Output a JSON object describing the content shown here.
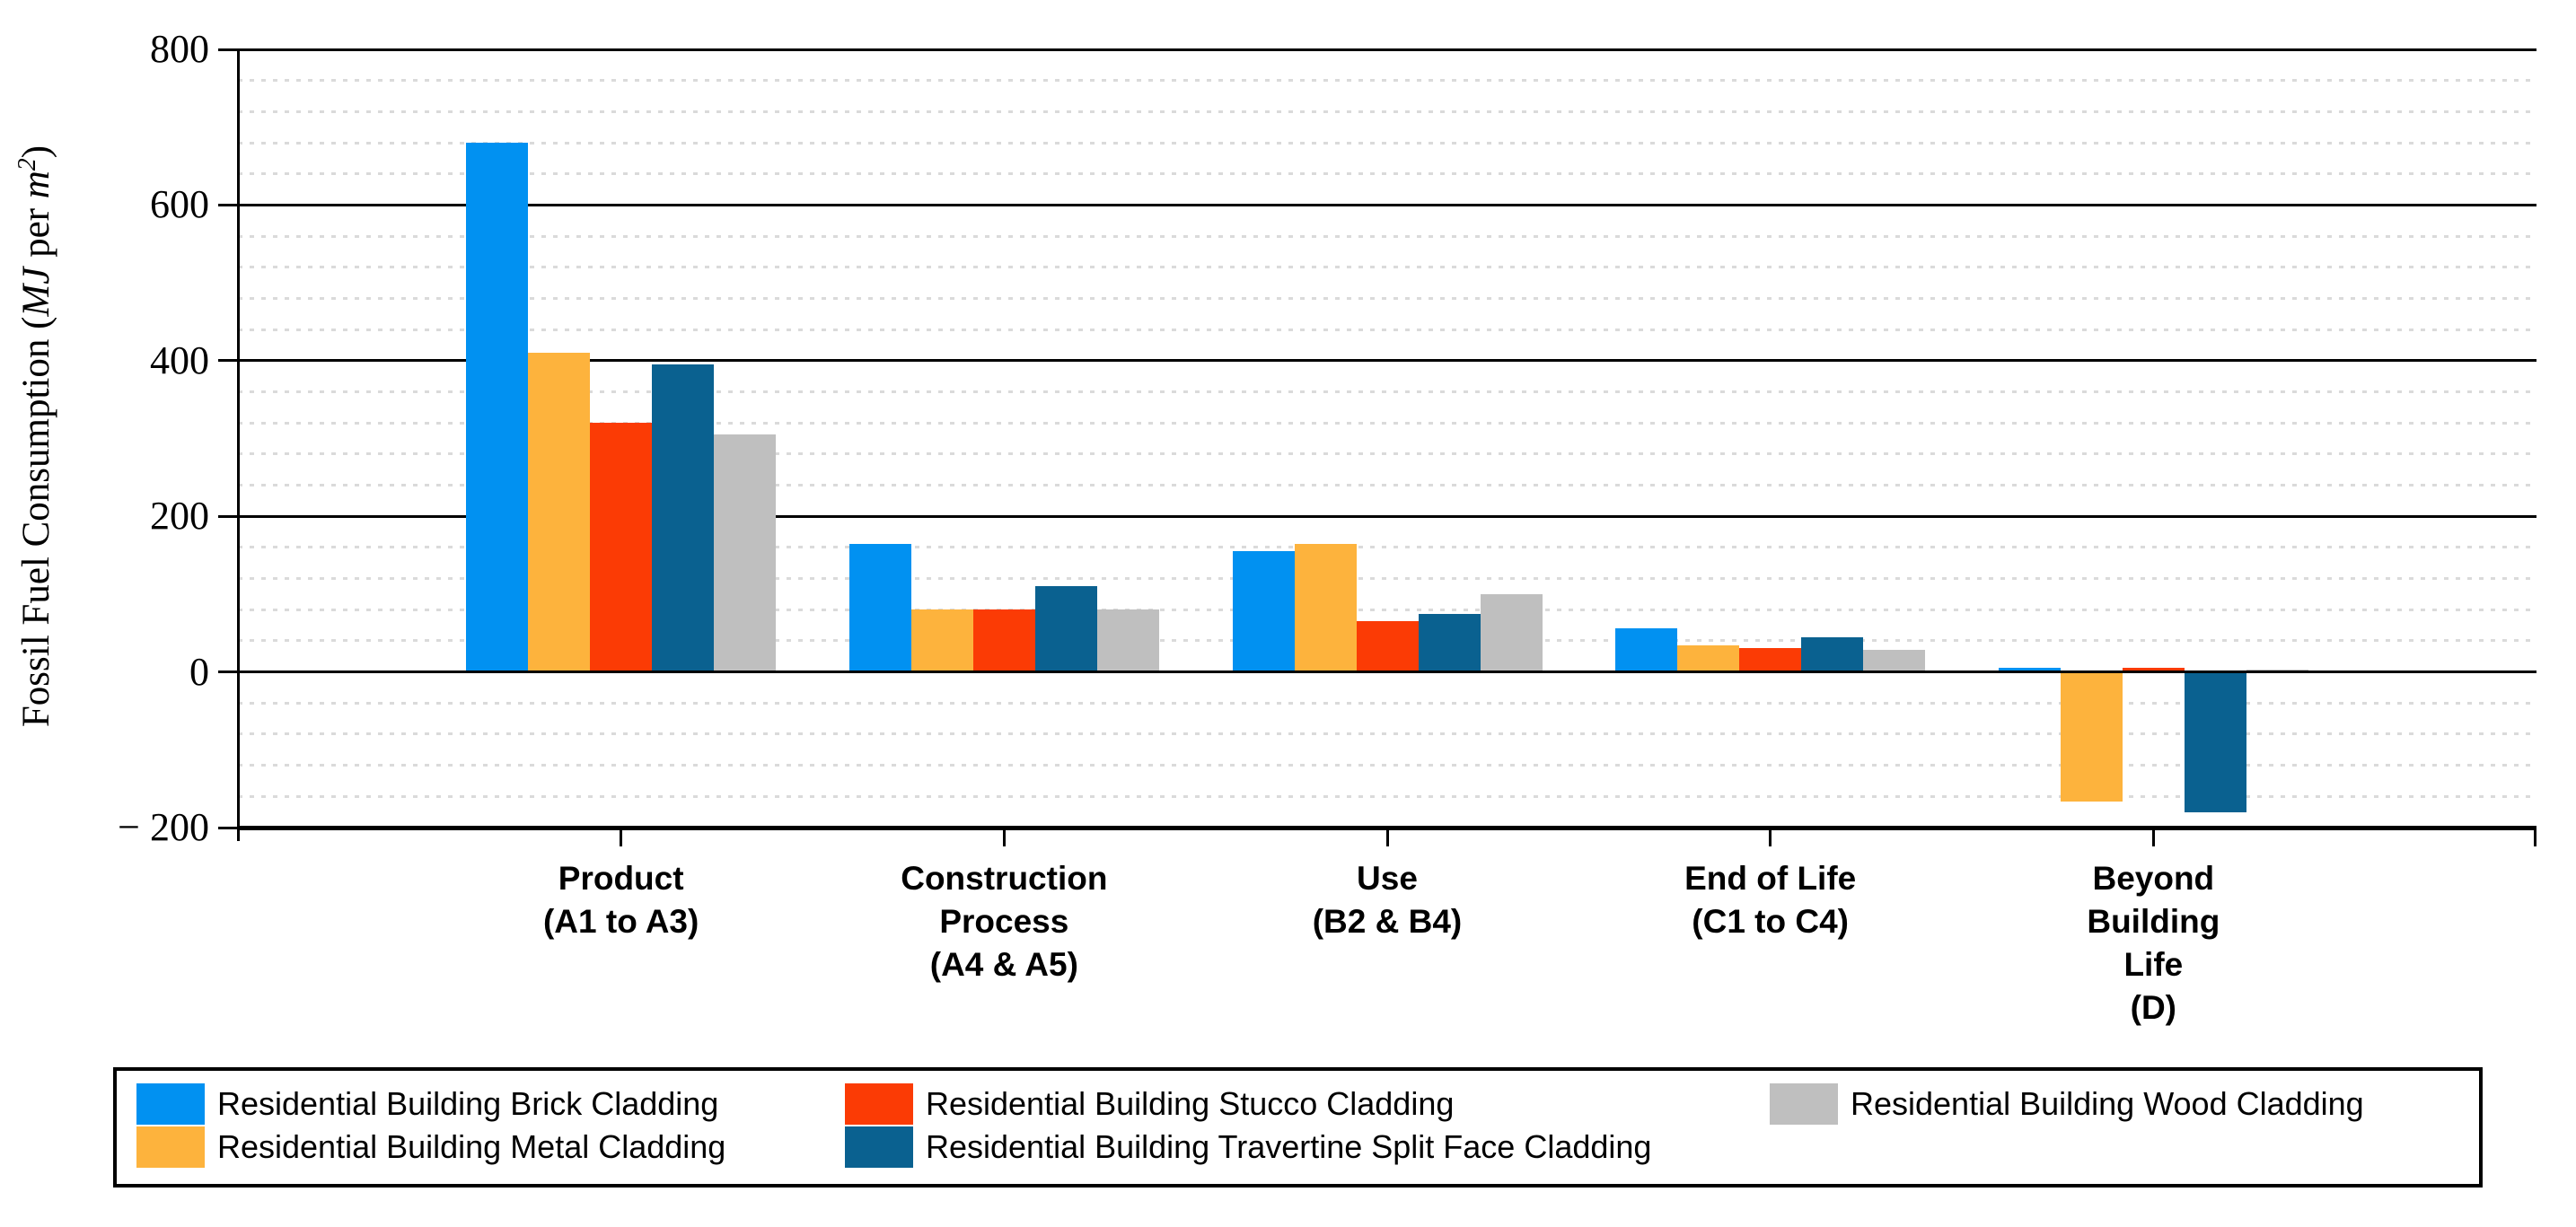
{
  "chart_data": {
    "type": "bar",
    "title": "",
    "ylabel": "Fossil Fuel Consumption (MJ per m2)",
    "ylabel_parts": {
      "prefix": "Fossil Fuel Consumption (",
      "italic1": "MJ",
      "mid": " per ",
      "italic2": "m",
      "superscript": "2",
      "suffix": ")"
    },
    "categories": [
      {
        "lines": [
          "Product",
          "(A1 to A3)"
        ]
      },
      {
        "lines": [
          "Construction",
          "Process",
          "(A4 & A5)"
        ]
      },
      {
        "lines": [
          "Use",
          "(B2 & B4)"
        ]
      },
      {
        "lines": [
          "End of Life",
          "(C1 to C4)"
        ]
      },
      {
        "lines": [
          "Beyond",
          "Building",
          "Life",
          "(D)"
        ]
      }
    ],
    "series": [
      {
        "name": "Residential Building Brick Cladding",
        "color": "#0191F1",
        "values": [
          680,
          165,
          155,
          56,
          5
        ]
      },
      {
        "name": "Residential Building Metal Cladding",
        "color": "#FDB33D",
        "values": [
          410,
          80,
          165,
          34,
          -167
        ]
      },
      {
        "name": "Residential Building Stucco Cladding",
        "color": "#FB3B05",
        "values": [
          320,
          80,
          65,
          31,
          5
        ]
      },
      {
        "name": "Residential Building Travertine Split Face Cladding",
        "color": "#0A6190",
        "values": [
          395,
          110,
          75,
          45,
          -180
        ]
      },
      {
        "name": "Residential Building Wood Cladding",
        "color": "#BFBFBF",
        "values": [
          305,
          80,
          100,
          28,
          3
        ]
      }
    ],
    "y_axis": {
      "min": -200,
      "max": 800,
      "major_step": 200,
      "minor_step": 40,
      "ticks": [
        {
          "value": 800,
          "label": "800"
        },
        {
          "value": 600,
          "label": "600"
        },
        {
          "value": 400,
          "label": "400"
        },
        {
          "value": 200,
          "label": "200"
        },
        {
          "value": 0,
          "label": "0"
        },
        {
          "value": -200,
          "label": "− 200"
        }
      ]
    },
    "legend_position": "bottom",
    "grid": "major solid black, minor dotted light gray",
    "colors": {
      "background": "#FFFFFF",
      "axis": "#000000",
      "grid_major": "#000000",
      "grid_minor": "#DADADA",
      "text": "#000000"
    }
  }
}
